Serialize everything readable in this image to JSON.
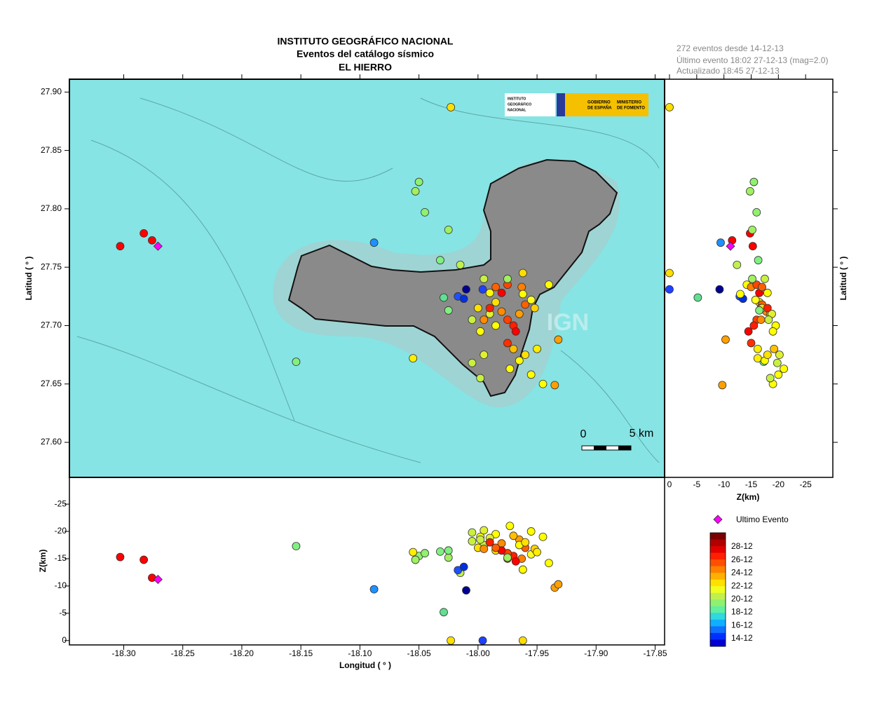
{
  "header": {
    "lines": [
      "INSTITUTO GEOGRÁFICO NACIONAL",
      "Eventos del catálogo sísmico",
      "EL HIERRO"
    ]
  },
  "info": {
    "lines": [
      "272 eventos desde 14-12-13",
      "Último evento 18:02 27-12-13  (mag=2.0)",
      "Actualizado    18:45  27-12-13"
    ]
  },
  "logo": {
    "ign": [
      "INSTITUTO",
      "GEOGRÁFICO",
      "NACIONAL"
    ],
    "gov": [
      "GOBIERNO",
      "DE ESPAÑA"
    ],
    "min": [
      "MINISTERIO",
      "DE FOMENTO"
    ]
  },
  "map": {
    "scale_start": "0",
    "scale_end": "5 km",
    "watermark": "IGN"
  },
  "colorbar": {
    "labels": [
      "28-12",
      "26-12",
      "24-12",
      "22-12",
      "20-12",
      "18-12",
      "16-12",
      "14-12"
    ],
    "colors": [
      "#7a0000",
      "#b00000",
      "#e00000",
      "#ff2000",
      "#ff5000",
      "#ff8000",
      "#ffb000",
      "#ffe000",
      "#f0ff20",
      "#c0f050",
      "#90f070",
      "#60f0a0",
      "#30d8e0",
      "#10b0ff",
      "#1070ff",
      "#0030ff",
      "#0000d0"
    ]
  },
  "chart_data": [
    {
      "type": "scatter",
      "ylabel": "Latitud ( ° )",
      "x": [
        -18.283,
        -18.303,
        -18.276,
        -18.023,
        -18.154,
        -18.088,
        -18.05,
        -18.053,
        -18.045,
        -18.025,
        -18.032,
        -18.015,
        -18.017,
        -18.012,
        -18.01,
        -18.029,
        -18.055,
        -17.995,
        -17.99,
        -17.985,
        -17.98,
        -17.975,
        -17.97,
        -17.965,
        -17.96,
        -17.955,
        -17.952,
        -17.985,
        -17.99,
        -18.0,
        -18.005,
        -17.998,
        -17.975,
        -17.97,
        -17.965,
        -17.96,
        -17.95,
        -17.955,
        -17.945,
        -17.935,
        -17.932,
        -17.94,
        -17.963,
        -17.975,
        -17.98,
        -17.99,
        -17.968,
        -17.995,
        -18.005,
        -17.975,
        -17.962,
        -17.985,
        -17.995,
        -18.025,
        -17.973,
        -17.998,
        -17.962,
        -17.996
      ],
      "values": [
        27.779,
        27.768,
        27.773,
        27.887,
        27.669,
        27.771,
        27.823,
        27.815,
        27.797,
        27.782,
        27.756,
        27.752,
        27.725,
        27.723,
        27.731,
        27.724,
        27.672,
        27.74,
        27.728,
        27.72,
        27.712,
        27.705,
        27.7,
        27.71,
        27.718,
        27.722,
        27.715,
        27.7,
        27.71,
        27.715,
        27.705,
        27.695,
        27.685,
        27.68,
        27.67,
        27.675,
        27.68,
        27.658,
        27.65,
        27.649,
        27.688,
        27.735,
        27.733,
        27.735,
        27.728,
        27.715,
        27.695,
        27.675,
        27.668,
        27.74,
        27.727,
        27.733,
        27.705,
        27.713,
        27.663,
        27.655,
        27.745,
        27.731
      ],
      "depth": [
        -14.8,
        -15.3,
        -11.5,
        0,
        -17.3,
        -9.4,
        -15.5,
        -14.8,
        -16.0,
        -15.2,
        -16.3,
        -12.4,
        -12.9,
        -13.5,
        -9.2,
        -5.2,
        -16.2,
        -17.5,
        -18.0,
        -16.5,
        -17.8,
        -16.0,
        -15.5,
        -18.5,
        -17.0,
        -15.8,
        -16.8,
        -19.5,
        -18.8,
        -17.0,
        -18.2,
        -19.0,
        -15.0,
        -19.2,
        -17.5,
        -18.0,
        -16.2,
        -20.0,
        -19.0,
        -9.7,
        -10.3,
        -14.2,
        -15.0,
        -16.0,
        -16.5,
        -18.0,
        -14.5,
        -20.2,
        -19.8,
        -15.2,
        -13.0,
        -17.0,
        -16.8,
        -16.5,
        -21.0,
        -18.5,
        0,
        0
      ],
      "colors": [
        "#ff0000",
        "#ff0000",
        "#ff0000",
        "#ffe000",
        "#80f080",
        "#1e90ff",
        "#90f070",
        "#a0f060",
        "#90f070",
        "#a0f060",
        "#80f080",
        "#c0f050",
        "#1e50ff",
        "#0030e0",
        "#000090",
        "#60e090",
        "#ffee00",
        "#c8f040",
        "#ffff00",
        "#ffe000",
        "#ff8c00",
        "#ff4000",
        "#ff2000",
        "#ffa000",
        "#ff6000",
        "#ffff20",
        "#ffd000",
        "#ffff00",
        "#e0f030",
        "#ffe000",
        "#c8f040",
        "#ffff00",
        "#ff3000",
        "#ffc000",
        "#ffff00",
        "#ffe000",
        "#ffee00",
        "#ffff00",
        "#ffff00",
        "#ffa000",
        "#ffa000",
        "#ffff00",
        "#ff8000",
        "#ff4500",
        "#ff0000",
        "#ff2000",
        "#ff0000",
        "#e0f030",
        "#c8f040",
        "#a0f060",
        "#ffff00",
        "#ff6000",
        "#ff8c00",
        "#80f080",
        "#ffff00",
        "#c8f040",
        "#ffdd00",
        "#1e40ff"
      ],
      "last_event": {
        "label": "Ultimo Evento",
        "lon": -18.271,
        "lat": 27.768,
        "depth": -11.2,
        "color": "#ff00ff"
      },
      "xlim": [
        -18.346,
        -17.842
      ],
      "ylim": [
        27.57,
        27.911
      ],
      "yticks": [
        {
          "value": 27.6,
          "label": "27.60"
        },
        27.65,
        {
          "value": 27.7,
          "label": "27.70"
        },
        27.75,
        {
          "value": 27.8,
          "label": "27.80"
        },
        27.85,
        {
          "value": 27.9,
          "label": "27.90"
        }
      ]
    },
    {
      "type": "scatter",
      "ylabel": "Z(km)",
      "xlabel": "Longitud ( ° )",
      "xlim": [
        -18.346,
        -17.842
      ],
      "ylim": [
        0.8,
        -29.9
      ],
      "xticks": [
        {
          "value": -18.3,
          "label": "-18.30"
        },
        -18.25,
        {
          "value": -18.2,
          "label": "-18.20"
        },
        -18.15,
        {
          "value": -18.1,
          "label": "-18.10"
        },
        -18.05,
        {
          "value": -18.0,
          "label": "-18.00"
        },
        -17.95,
        {
          "value": -17.9,
          "label": "-17.90"
        },
        -17.85
      ],
      "yticks": [
        0,
        -5,
        -10,
        -15,
        -20,
        -25
      ]
    },
    {
      "type": "scatter",
      "xlabel": "Z(km)",
      "ylabel": "Latitud ( ° )",
      "xlim": [
        0.9,
        -30.0
      ],
      "ylim": [
        27.57,
        27.911
      ],
      "xticks": [
        0,
        -5,
        -10,
        -15,
        -20,
        -25
      ]
    }
  ]
}
